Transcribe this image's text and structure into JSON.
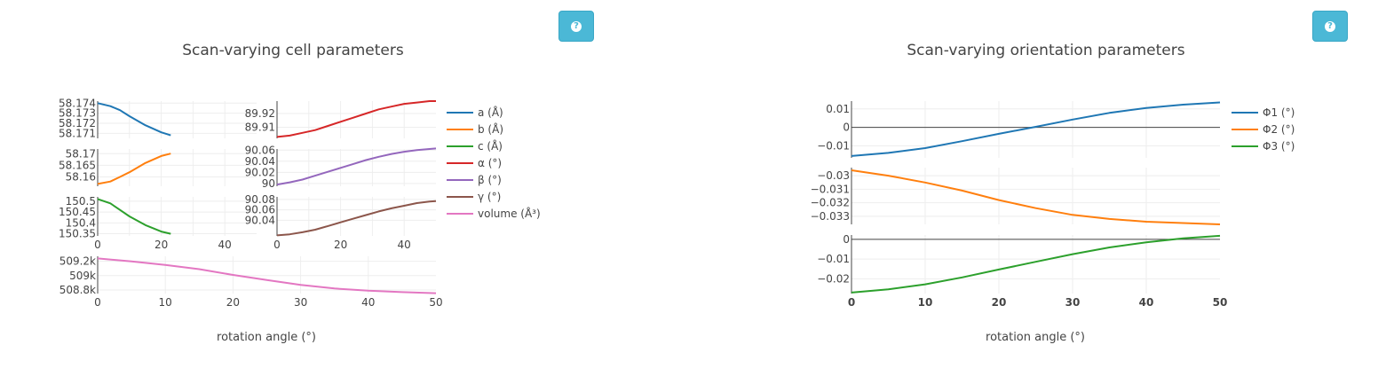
{
  "help_buttons": [
    {
      "icon": "question-circle-icon"
    },
    {
      "icon": "question-circle-icon"
    }
  ],
  "colors": {
    "c1": "#1f77b4",
    "c2": "#ff7f0e",
    "c3": "#2ca02c",
    "c4": "#d62728",
    "c5": "#9467bd",
    "c6": "#8c564b",
    "c7": "#e377c2",
    "grid": "#eeeeee",
    "help": "#4bb8d6"
  },
  "chart_data": [
    {
      "type": "line",
      "title": "Scan-varying cell parameters",
      "xlabel": "rotation angle (°)",
      "legend_placement": "right",
      "grid": true,
      "subplots": [
        {
          "series": "a (Å)",
          "xlim": [
            0,
            50
          ],
          "ylim": [
            58.1705,
            58.1742
          ],
          "yticks": [
            "58.174",
            "58.173",
            "58.172",
            "58.171"
          ],
          "ytickvals": [
            58.174,
            58.173,
            58.172,
            58.171
          ],
          "xticks": []
        },
        {
          "series": "α (°)",
          "xlim": [
            0,
            50
          ],
          "ylim": [
            89.902,
            89.929
          ],
          "yticks": [
            "89.92",
            "89.91"
          ],
          "ytickvals": [
            89.92,
            89.91
          ],
          "xticks": []
        },
        {
          "series": "b (Å)",
          "xlim": [
            0,
            50
          ],
          "ylim": [
            58.156,
            58.172
          ],
          "yticks": [
            "58.17",
            "58.165",
            "58.16"
          ],
          "ytickvals": [
            58.17,
            58.165,
            58.16
          ],
          "xticks": []
        },
        {
          "series": "β (°)",
          "xlim": [
            0,
            50
          ],
          "ylim": [
            89.995,
            90.062
          ],
          "yticks": [
            "90.06",
            "90.04",
            "90.02",
            "90"
          ],
          "ytickvals": [
            90.06,
            90.04,
            90.02,
            90
          ],
          "xticks": []
        },
        {
          "series": "c (Å)",
          "xlim": [
            0,
            50
          ],
          "ylim": [
            150.34,
            150.52
          ],
          "yticks": [
            "150.5",
            "150.45",
            "150.4",
            "150.35"
          ],
          "ytickvals": [
            150.5,
            150.45,
            150.4,
            150.35
          ],
          "xticks": [
            "0",
            "20",
            "40"
          ]
        },
        {
          "series": "γ (°)",
          "xlim": [
            0,
            50
          ],
          "ylim": [
            90.01,
            90.085
          ],
          "yticks": [
            "90.08",
            "90.06",
            "90.04"
          ],
          "ytickvals": [
            90.08,
            90.06,
            90.04
          ],
          "xticks": [
            "0",
            "20",
            "40"
          ]
        },
        {
          "series": "volume (Å³)",
          "xlim": [
            0,
            50
          ],
          "ylim": [
            508750,
            509270
          ],
          "yticks": [
            "509.2k",
            "509k",
            "508.8k"
          ],
          "ytickvals": [
            509200,
            509000,
            508800
          ],
          "xticks": [
            "0",
            "10",
            "20",
            "30",
            "40",
            "50"
          ]
        }
      ],
      "series": [
        {
          "name": "a (Å)",
          "x": [
            0,
            4,
            7,
            10,
            15,
            20,
            23
          ],
          "y": [
            58.174,
            58.1737,
            58.1733,
            58.1727,
            58.1718,
            58.1711,
            58.1708
          ]
        },
        {
          "name": "b (Å)",
          "x": [
            0,
            4,
            7,
            10,
            15,
            20,
            23
          ],
          "y": [
            58.157,
            58.158,
            58.16,
            58.162,
            58.166,
            58.169,
            58.17
          ]
        },
        {
          "name": "c (Å)",
          "x": [
            0,
            4,
            7,
            10,
            15,
            20,
            23
          ],
          "y": [
            150.51,
            150.49,
            150.46,
            150.43,
            150.39,
            150.36,
            150.35
          ]
        },
        {
          "name": "α (°)",
          "x": [
            0,
            4,
            8,
            12,
            16,
            20,
            24,
            28,
            32,
            36,
            40,
            44,
            48,
            50
          ],
          "y": [
            89.903,
            89.904,
            89.906,
            89.908,
            89.911,
            89.914,
            89.917,
            89.92,
            89.923,
            89.925,
            89.927,
            89.928,
            89.929,
            89.929
          ]
        },
        {
          "name": "β (°)",
          "x": [
            0,
            4,
            8,
            12,
            16,
            20,
            24,
            28,
            32,
            36,
            40,
            44,
            48,
            50
          ],
          "y": [
            89.998,
            90.002,
            90.007,
            90.014,
            90.021,
            90.028,
            90.035,
            90.042,
            90.048,
            90.053,
            90.057,
            90.06,
            90.062,
            90.063
          ]
        },
        {
          "name": "γ (°)",
          "x": [
            0,
            4,
            8,
            12,
            16,
            20,
            24,
            28,
            32,
            36,
            40,
            44,
            48,
            50
          ],
          "y": [
            90.011,
            90.013,
            90.017,
            90.022,
            90.029,
            90.036,
            90.043,
            90.05,
            90.057,
            90.063,
            90.068,
            90.073,
            90.076,
            90.077
          ]
        },
        {
          "name": "volume (Å³)",
          "x": [
            0,
            5,
            10,
            15,
            20,
            25,
            30,
            35,
            40,
            45,
            50
          ],
          "y": [
            509240,
            509200,
            509150,
            509090,
            509010,
            508940,
            508870,
            508820,
            508790,
            508770,
            508755
          ]
        }
      ]
    },
    {
      "type": "line",
      "title": "Scan-varying orientation parameters",
      "xlabel": "rotation angle (°)",
      "legend_placement": "right",
      "grid": true,
      "subplots": [
        {
          "series": "Φ1 (°)",
          "xlim": [
            0,
            50
          ],
          "ylim": [
            -0.0165,
            0.0142
          ],
          "yticks": [
            "0.01",
            "0",
            "−0.01"
          ],
          "ytickvals": [
            0.01,
            0,
            -0.01
          ],
          "zeroline": true,
          "xticks": []
        },
        {
          "series": "Φ2 (°)",
          "xlim": [
            0,
            50
          ],
          "ylim": [
            -0.0336,
            -0.0294
          ],
          "yticks": [
            "−0.03",
            "−0.031",
            "−0.032",
            "−0.033"
          ],
          "ytickvals": [
            -0.03,
            -0.031,
            -0.032,
            -0.033
          ],
          "xticks": []
        },
        {
          "series": "Φ3 (°)",
          "xlim": [
            0,
            50
          ],
          "ylim": [
            -0.0275,
            0.0022
          ],
          "yticks": [
            "0",
            "−0.01",
            "−0.02"
          ],
          "ytickvals": [
            0,
            -0.01,
            -0.02
          ],
          "zeroline": true,
          "xticks": [
            "0",
            "10",
            "20",
            "30",
            "40",
            "50"
          ]
        }
      ],
      "series": [
        {
          "name": "Φ1 (°)",
          "x": [
            0,
            5,
            10,
            15,
            20,
            25,
            30,
            35,
            40,
            45,
            50
          ],
          "y": [
            -0.0155,
            -0.0138,
            -0.0112,
            -0.0075,
            -0.0035,
            0.0003,
            0.0042,
            0.0078,
            0.0105,
            0.0123,
            0.0135
          ]
        },
        {
          "name": "Φ2 (°)",
          "x": [
            0,
            5,
            10,
            15,
            20,
            25,
            30,
            35,
            40,
            45,
            50
          ],
          "y": [
            -0.0296,
            -0.03,
            -0.0305,
            -0.0311,
            -0.0318,
            -0.0324,
            -0.0329,
            -0.0332,
            -0.0334,
            -0.0335,
            -0.0336
          ]
        },
        {
          "name": "Φ3 (°)",
          "x": [
            0,
            5,
            10,
            15,
            20,
            25,
            30,
            35,
            40,
            45,
            50
          ],
          "y": [
            -0.027,
            -0.0254,
            -0.0228,
            -0.0193,
            -0.0153,
            -0.0114,
            -0.0075,
            -0.0041,
            -0.0015,
            0.0005,
            0.0018
          ]
        }
      ]
    }
  ]
}
